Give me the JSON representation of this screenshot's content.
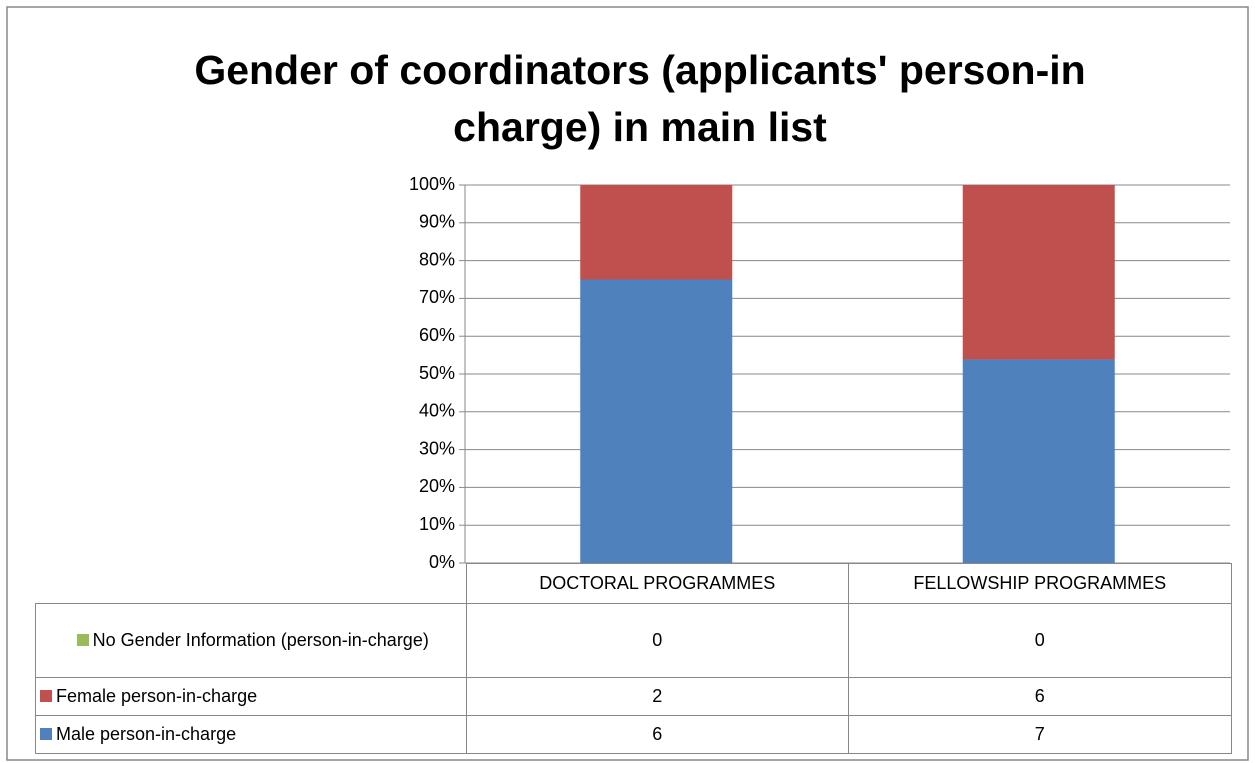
{
  "chart_data": {
    "type": "bar",
    "stacking": "percent",
    "title": "Gender of coordinators (applicants' person-in charge) in main list",
    "categories": [
      "DOCTORAL PROGRAMMES",
      "FELLOWSHIP PROGRAMMES"
    ],
    "series": [
      {
        "name": "No Gender Information (person-in-charge)",
        "color": "#9bbb59",
        "values": [
          0,
          0
        ]
      },
      {
        "name": "Female person-in-charge",
        "color": "#c0504d",
        "values": [
          2,
          6
        ]
      },
      {
        "name": "Male person-in-charge",
        "color": "#4f81bd",
        "values": [
          6,
          7
        ]
      }
    ],
    "ylim": [
      0,
      100
    ],
    "yticks": [
      {
        "value": 0,
        "label": "0%"
      },
      {
        "value": 10,
        "label": "10%"
      },
      {
        "value": 20,
        "label": "20%"
      },
      {
        "value": 30,
        "label": "30%"
      },
      {
        "value": 40,
        "label": "40%"
      },
      {
        "value": 50,
        "label": "50%"
      },
      {
        "value": 60,
        "label": "60%"
      },
      {
        "value": 70,
        "label": "70%"
      },
      {
        "value": 80,
        "label": "80%"
      },
      {
        "value": 90,
        "label": "90%"
      },
      {
        "value": 100,
        "label": "100%"
      }
    ],
    "grid": true,
    "data_table": true
  }
}
